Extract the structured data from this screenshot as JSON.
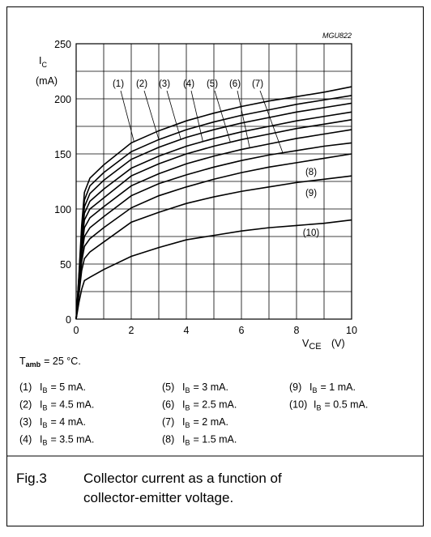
{
  "chart_data": {
    "type": "line",
    "code": "MGU822",
    "ylabel": {
      "symbol": "I",
      "subscript": "C",
      "unit": "(mA)"
    },
    "xlabel": {
      "symbol": "V",
      "subscript": "CE",
      "unit": "(V)"
    },
    "xlim": [
      0,
      10
    ],
    "xticks": [
      0,
      2,
      4,
      6,
      8,
      10
    ],
    "xgrid": [
      1,
      3,
      5,
      7,
      9
    ],
    "ylim": [
      0,
      250
    ],
    "yticks": [
      0,
      50,
      100,
      150,
      200,
      250
    ],
    "ygrid": [
      25,
      75,
      125,
      175,
      225
    ],
    "grid": true,
    "line_color": "#000000",
    "x": [
      0,
      0.1,
      0.2,
      0.3,
      0.5,
      1,
      2,
      3,
      4,
      5,
      6,
      7,
      8,
      9,
      10
    ],
    "legend_symbol": "I",
    "legend_subscript": "B",
    "series": [
      {
        "name": "(1)",
        "condition": "= 5 mA.",
        "values": [
          0,
          40,
          85,
          115,
          128,
          140,
          160,
          171,
          180,
          187,
          193,
          198,
          202,
          206,
          211
        ]
      },
      {
        "name": "(2)",
        "condition": "= 4.5 mA.",
        "values": [
          0,
          38,
          80,
          108,
          121,
          133,
          152,
          163,
          172,
          179,
          185,
          190,
          195,
          199,
          203
        ]
      },
      {
        "name": "(3)",
        "condition": "= 4 mA.",
        "values": [
          0,
          36,
          76,
          102,
          114,
          126,
          145,
          156,
          165,
          172,
          178,
          183,
          188,
          192,
          196
        ]
      },
      {
        "name": "(4)",
        "condition": "= 3.5 mA.",
        "values": [
          0,
          34,
          72,
          96,
          107,
          118,
          137,
          148,
          157,
          164,
          170,
          175,
          180,
          184,
          188
        ]
      },
      {
        "name": "(5)",
        "condition": "= 3 mA.",
        "values": [
          0,
          32,
          68,
          90,
          100,
          110,
          130,
          141,
          150,
          157,
          163,
          168,
          173,
          177,
          181
        ]
      },
      {
        "name": "(6)",
        "condition": "= 2.5 mA.",
        "values": [
          0,
          30,
          63,
          83,
          92,
          102,
          121,
          132,
          141,
          148,
          154,
          159,
          164,
          168,
          172
        ]
      },
      {
        "name": "(7)",
        "condition": "= 2 mA.",
        "values": [
          0,
          28,
          58,
          75,
          83,
          93,
          112,
          123,
          131,
          138,
          144,
          149,
          153,
          157,
          160
        ]
      },
      {
        "name": "(8)",
        "condition": "= 1.5 mA.",
        "values": [
          0,
          25,
          52,
          66,
          73,
          83,
          101,
          112,
          120,
          127,
          133,
          138,
          142,
          146,
          150
        ]
      },
      {
        "name": "(9)",
        "condition": "= 1 mA.",
        "values": [
          0,
          22,
          44,
          55,
          61,
          70,
          88,
          97,
          105,
          111,
          116,
          120,
          124,
          127,
          130
        ]
      },
      {
        "name": "(10)",
        "condition": "= 0.5 mA.",
        "values": [
          0,
          15,
          27,
          35,
          38,
          45,
          57,
          65,
          72,
          76,
          80,
          83,
          85,
          87,
          90
        ]
      }
    ],
    "ambient": {
      "symbol": "T",
      "subscript": "amb",
      "text": "= 25 °C."
    },
    "caption": {
      "number": "Fig.3",
      "lines": [
        "Collector current as a function of",
        "collector-emitter voltage."
      ]
    }
  }
}
